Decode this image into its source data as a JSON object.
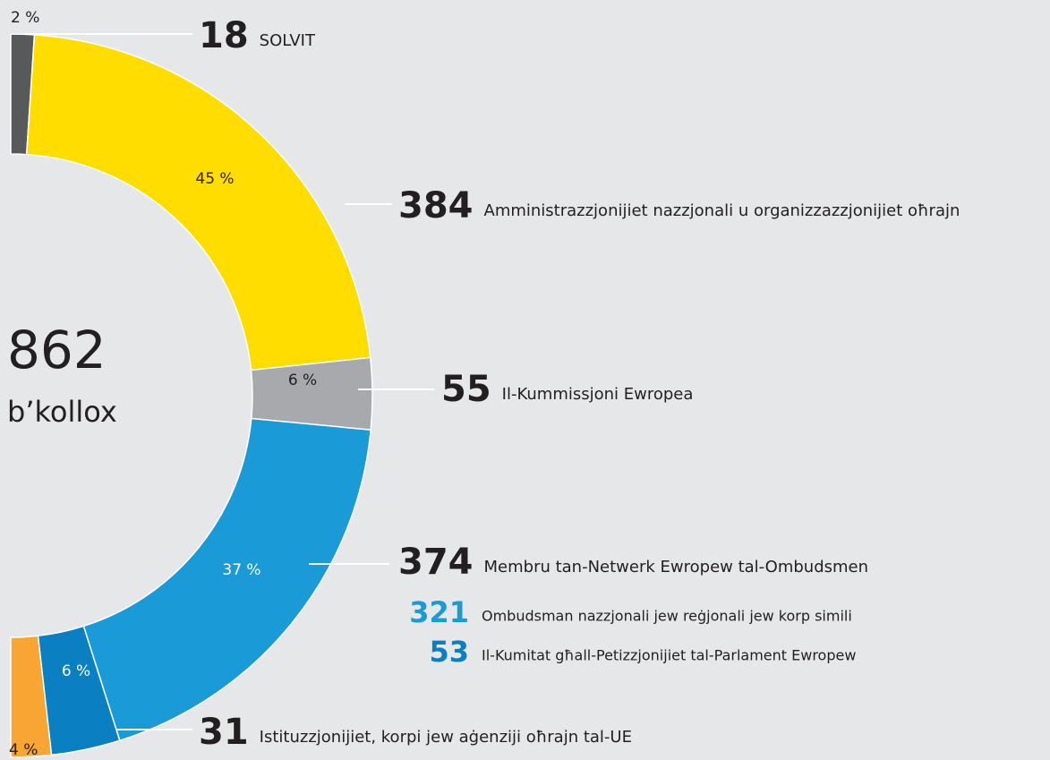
{
  "chart_data": {
    "type": "donut",
    "total": 862,
    "total_label": "b’kollox",
    "categories": [
      "SOLVIT",
      "Amministrazzjonijiet nazzjonali u organizzazzjonijiet oħrajn",
      "Il-Kummissjoni Ewropea",
      "Ombudsman nazzjonali jew reġjonali jew korp simili",
      "Il-Kumitat għall-Petizzjonijiet tal-Parlament Ewropew",
      "Istituzzjonijiet, korpi jew aġenziji oħrajn tal-UE"
    ],
    "values": [
      18,
      384,
      55,
      321,
      53,
      31
    ],
    "percent_labels": [
      "2 %",
      "45 %",
      "6 %",
      "37 %",
      "6 %",
      "4 %"
    ],
    "colors": [
      "#58595b",
      "#ffdd00",
      "#a7a9ac",
      "#1a9ad6",
      "#0a7fc1",
      "#f9a533"
    ],
    "groups": [
      {
        "name": "Membru tan-Netwerk Ewropew tal-Ombudsmen",
        "value": 374
      }
    ]
  }
}
